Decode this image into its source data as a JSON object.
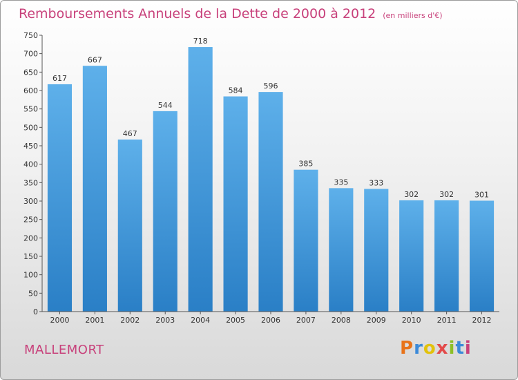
{
  "header": {
    "title": "Remboursements Annuels de la Dette de 2000 à 2012",
    "unit": "(en milliers d'€)"
  },
  "footer": {
    "town": "MALLEMORT",
    "logo": "Proxiti",
    "logo_colors": [
      "#e8731a",
      "#3b8ad9",
      "#e2c20d",
      "#e34a4a",
      "#8cbf26",
      "#3b8ad9",
      "#c8417b"
    ]
  },
  "colors": {
    "title": "#c8417b",
    "bar_top": "#5eb0ea",
    "bar_bottom": "#2a7fc6"
  },
  "chart_data": {
    "type": "bar",
    "title": "Remboursements Annuels de la Dette de 2000 à 2012",
    "subtitle": "(en milliers d'€)",
    "categories": [
      "2000",
      "2001",
      "2002",
      "2003",
      "2004",
      "2005",
      "2006",
      "2007",
      "2008",
      "2009",
      "2010",
      "2011",
      "2012"
    ],
    "values": [
      617,
      667,
      467,
      544,
      718,
      584,
      596,
      385,
      335,
      333,
      302,
      302,
      301
    ],
    "ylim": [
      0,
      750
    ],
    "yticks": [
      0,
      50,
      100,
      150,
      200,
      250,
      300,
      350,
      400,
      450,
      500,
      550,
      600,
      650,
      700,
      750
    ],
    "grid": false
  }
}
